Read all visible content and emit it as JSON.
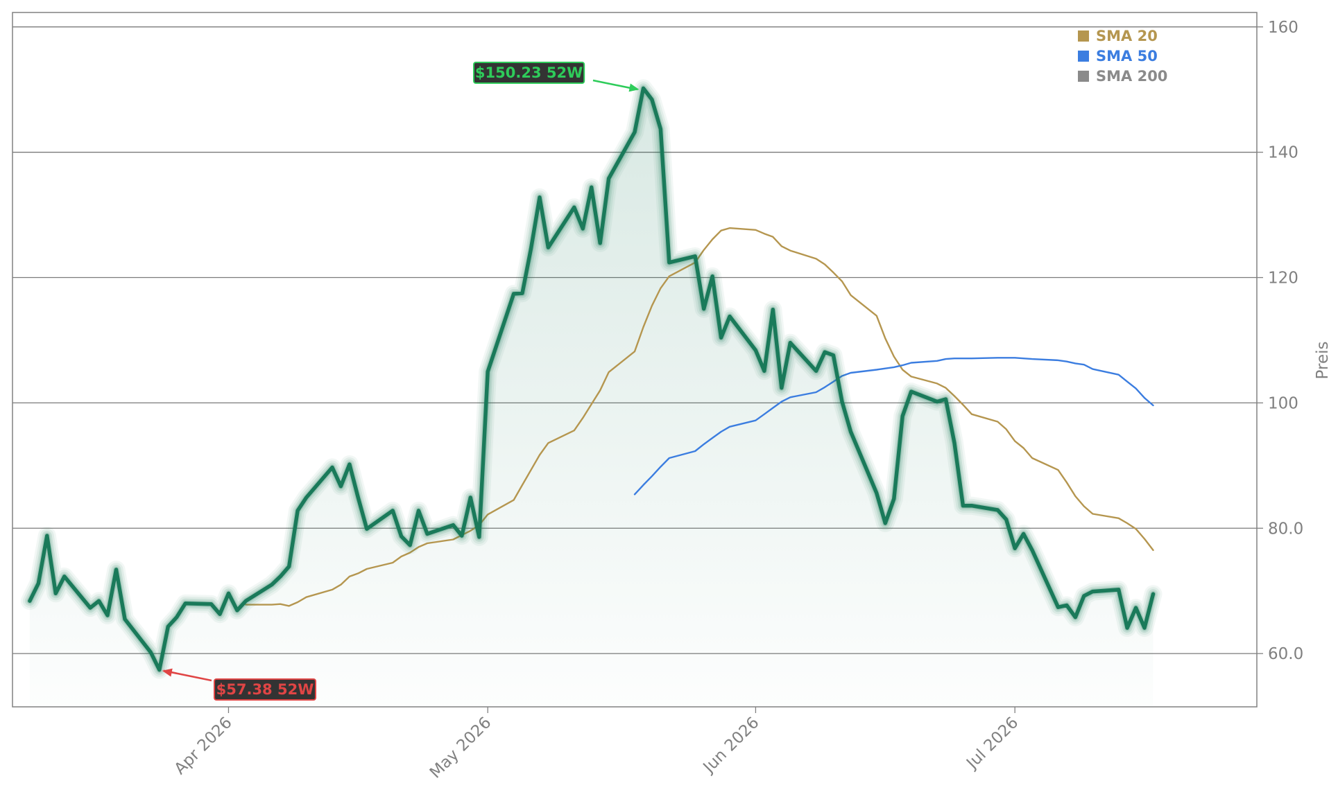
{
  "chart_data": {
    "type": "line",
    "title": "",
    "xlabel": "",
    "ylabel": "Preis",
    "ylim": [
      51.5,
      162.3
    ],
    "xlim": [
      "2026-03-07",
      "2026-07-29"
    ],
    "y_axis_side": "right",
    "grid": "horizontal",
    "yticks": [
      {
        "value": 60,
        "label": "60.0"
      },
      {
        "value": 80,
        "label": "80.0"
      },
      {
        "value": 100,
        "label": "100"
      },
      {
        "value": 120,
        "label": "120"
      },
      {
        "value": 140,
        "label": "140"
      },
      {
        "value": 160,
        "label": "160"
      }
    ],
    "xticks": [
      {
        "value": "2026-04-01",
        "label": "Apr 2026"
      },
      {
        "value": "2026-05-01",
        "label": "May 2026"
      },
      {
        "value": "2026-06-01",
        "label": "Jun 2026"
      },
      {
        "value": "2026-07-01",
        "label": "Jul 2026"
      }
    ],
    "legend": {
      "placement": "top-right",
      "entries": [
        {
          "name": "SMA 20",
          "color": "#b5964f"
        },
        {
          "name": "SMA 50",
          "color": "#3b7de0"
        },
        {
          "name": "SMA 200",
          "color": "#8a8a8a"
        }
      ]
    },
    "price_color": "#1a7a5a",
    "series": [
      {
        "name": "",
        "role": "price",
        "points": [
          [
            "2026-03-09",
            68.4
          ],
          [
            "2026-03-10",
            71.2
          ],
          [
            "2026-03-11",
            78.8
          ],
          [
            "2026-03-12",
            69.6
          ],
          [
            "2026-03-13",
            72.3
          ],
          [
            "2026-03-16",
            67.3
          ],
          [
            "2026-03-17",
            68.4
          ],
          [
            "2026-03-18",
            66.1
          ],
          [
            "2026-03-19",
            73.4
          ],
          [
            "2026-03-20",
            65.5
          ],
          [
            "2026-03-23",
            60.2
          ],
          [
            "2026-03-24",
            57.4
          ],
          [
            "2026-03-25",
            64.3
          ],
          [
            "2026-03-26",
            65.8
          ],
          [
            "2026-03-27",
            68.0
          ],
          [
            "2026-03-30",
            67.9
          ],
          [
            "2026-03-31",
            66.3
          ],
          [
            "2026-04-01",
            69.6
          ],
          [
            "2026-04-02",
            66.9
          ],
          [
            "2026-04-03",
            68.4
          ],
          [
            "2026-04-06",
            71.0
          ],
          [
            "2026-04-07",
            72.3
          ],
          [
            "2026-04-08",
            73.9
          ],
          [
            "2026-04-09",
            82.8
          ],
          [
            "2026-04-10",
            84.9
          ],
          [
            "2026-04-13",
            89.7
          ],
          [
            "2026-04-14",
            86.7
          ],
          [
            "2026-04-15",
            90.2
          ],
          [
            "2026-04-16",
            84.9
          ],
          [
            "2026-04-17",
            79.9
          ],
          [
            "2026-04-20",
            82.8
          ],
          [
            "2026-04-21",
            78.7
          ],
          [
            "2026-04-22",
            77.3
          ],
          [
            "2026-04-23",
            82.8
          ],
          [
            "2026-04-24",
            79.1
          ],
          [
            "2026-04-27",
            80.5
          ],
          [
            "2026-04-28",
            78.8
          ],
          [
            "2026-04-29",
            84.9
          ],
          [
            "2026-04-30",
            78.6
          ],
          [
            "2026-05-01",
            105.0
          ],
          [
            "2026-05-04",
            117.4
          ],
          [
            "2026-05-05",
            117.5
          ],
          [
            "2026-05-06",
            124.6
          ],
          [
            "2026-05-07",
            132.8
          ],
          [
            "2026-05-08",
            124.8
          ],
          [
            "2026-05-11",
            131.2
          ],
          [
            "2026-05-12",
            127.8
          ],
          [
            "2026-05-13",
            134.4
          ],
          [
            "2026-05-14",
            125.5
          ],
          [
            "2026-05-15",
            135.8
          ],
          [
            "2026-05-18",
            143.2
          ],
          [
            "2026-05-19",
            150.2
          ],
          [
            "2026-05-20",
            148.4
          ],
          [
            "2026-05-21",
            143.7
          ],
          [
            "2026-05-22",
            122.4
          ],
          [
            "2026-05-25",
            123.4
          ],
          [
            "2026-05-26",
            115.0
          ],
          [
            "2026-05-27",
            120.2
          ],
          [
            "2026-05-28",
            110.4
          ],
          [
            "2026-05-29",
            113.8
          ],
          [
            "2026-06-01",
            108.4
          ],
          [
            "2026-06-02",
            105.1
          ],
          [
            "2026-06-03",
            114.9
          ],
          [
            "2026-06-04",
            102.4
          ],
          [
            "2026-06-05",
            109.6
          ],
          [
            "2026-06-08",
            105.1
          ],
          [
            "2026-06-09",
            108.1
          ],
          [
            "2026-06-10",
            107.6
          ],
          [
            "2026-06-11",
            100.2
          ],
          [
            "2026-06-12",
            95.4
          ],
          [
            "2026-06-15",
            85.6
          ],
          [
            "2026-06-16",
            80.8
          ],
          [
            "2026-06-17",
            84.7
          ],
          [
            "2026-06-18",
            97.9
          ],
          [
            "2026-06-19",
            101.8
          ],
          [
            "2026-06-22",
            100.2
          ],
          [
            "2026-06-23",
            100.6
          ],
          [
            "2026-06-24",
            93.6
          ],
          [
            "2026-06-25",
            83.6
          ],
          [
            "2026-06-26",
            83.6
          ],
          [
            "2026-06-29",
            82.9
          ],
          [
            "2026-06-30",
            81.4
          ],
          [
            "2026-07-01",
            76.8
          ],
          [
            "2026-07-02",
            79.1
          ],
          [
            "2026-07-03",
            76.5
          ],
          [
            "2026-07-06",
            67.4
          ],
          [
            "2026-07-07",
            67.7
          ],
          [
            "2026-07-08",
            65.8
          ],
          [
            "2026-07-09",
            69.2
          ],
          [
            "2026-07-10",
            69.9
          ],
          [
            "2026-07-13",
            70.2
          ],
          [
            "2026-07-14",
            64.1
          ],
          [
            "2026-07-15",
            67.3
          ],
          [
            "2026-07-16",
            64.1
          ],
          [
            "2026-07-17",
            69.5
          ]
        ]
      },
      {
        "name": "SMA 20",
        "role": "sma20",
        "points": [
          [
            "2026-04-03",
            67.8
          ],
          [
            "2026-04-06",
            67.8
          ],
          [
            "2026-04-07",
            67.9
          ],
          [
            "2026-04-08",
            67.6
          ],
          [
            "2026-04-09",
            68.2
          ],
          [
            "2026-04-10",
            69.0
          ],
          [
            "2026-04-13",
            70.2
          ],
          [
            "2026-04-14",
            71.0
          ],
          [
            "2026-04-15",
            72.3
          ],
          [
            "2026-04-16",
            72.8
          ],
          [
            "2026-04-17",
            73.5
          ],
          [
            "2026-04-20",
            74.5
          ],
          [
            "2026-04-21",
            75.5
          ],
          [
            "2026-04-22",
            76.1
          ],
          [
            "2026-04-23",
            77.0
          ],
          [
            "2026-04-24",
            77.6
          ],
          [
            "2026-04-27",
            78.2
          ],
          [
            "2026-04-28",
            78.9
          ],
          [
            "2026-04-29",
            79.6
          ],
          [
            "2026-04-30",
            80.5
          ],
          [
            "2026-05-01",
            82.2
          ],
          [
            "2026-05-04",
            84.5
          ],
          [
            "2026-05-05",
            86.9
          ],
          [
            "2026-05-06",
            89.3
          ],
          [
            "2026-05-07",
            91.7
          ],
          [
            "2026-05-08",
            93.6
          ],
          [
            "2026-05-11",
            95.6
          ],
          [
            "2026-05-12",
            97.6
          ],
          [
            "2026-05-13",
            99.8
          ],
          [
            "2026-05-14",
            102.0
          ],
          [
            "2026-05-15",
            104.9
          ],
          [
            "2026-05-18",
            108.2
          ],
          [
            "2026-05-19",
            112.1
          ],
          [
            "2026-05-20",
            115.5
          ],
          [
            "2026-05-21",
            118.3
          ],
          [
            "2026-05-22",
            120.2
          ],
          [
            "2026-05-25",
            122.4
          ],
          [
            "2026-05-26",
            124.4
          ],
          [
            "2026-05-27",
            126.1
          ],
          [
            "2026-05-28",
            127.5
          ],
          [
            "2026-05-29",
            127.9
          ],
          [
            "2026-06-01",
            127.6
          ],
          [
            "2026-06-02",
            127.0
          ],
          [
            "2026-06-03",
            126.5
          ],
          [
            "2026-06-04",
            125.0
          ],
          [
            "2026-06-05",
            124.3
          ],
          [
            "2026-06-08",
            123.0
          ],
          [
            "2026-06-09",
            122.1
          ],
          [
            "2026-06-10",
            120.8
          ],
          [
            "2026-06-11",
            119.4
          ],
          [
            "2026-06-12",
            117.2
          ],
          [
            "2026-06-15",
            113.9
          ],
          [
            "2026-06-16",
            110.3
          ],
          [
            "2026-06-17",
            107.4
          ],
          [
            "2026-06-18",
            105.3
          ],
          [
            "2026-06-19",
            104.2
          ],
          [
            "2026-06-22",
            103.1
          ],
          [
            "2026-06-23",
            102.4
          ],
          [
            "2026-06-24",
            101.1
          ],
          [
            "2026-06-25",
            99.7
          ],
          [
            "2026-06-26",
            98.2
          ],
          [
            "2026-06-29",
            97.0
          ],
          [
            "2026-06-30",
            95.8
          ],
          [
            "2026-07-01",
            93.9
          ],
          [
            "2026-07-02",
            92.8
          ],
          [
            "2026-07-03",
            91.2
          ],
          [
            "2026-07-06",
            89.3
          ],
          [
            "2026-07-07",
            87.3
          ],
          [
            "2026-07-08",
            85.1
          ],
          [
            "2026-07-09",
            83.5
          ],
          [
            "2026-07-10",
            82.3
          ],
          [
            "2026-07-13",
            81.6
          ],
          [
            "2026-07-14",
            80.8
          ],
          [
            "2026-07-15",
            79.9
          ],
          [
            "2026-07-16",
            78.3
          ],
          [
            "2026-07-17",
            76.5
          ]
        ]
      },
      {
        "name": "SMA 50",
        "role": "sma50",
        "points": [
          [
            "2026-05-18",
            85.4
          ],
          [
            "2026-05-19",
            86.9
          ],
          [
            "2026-05-20",
            88.3
          ],
          [
            "2026-05-21",
            89.8
          ],
          [
            "2026-05-22",
            91.2
          ],
          [
            "2026-05-25",
            92.3
          ],
          [
            "2026-05-26",
            93.4
          ],
          [
            "2026-05-27",
            94.4
          ],
          [
            "2026-05-28",
            95.4
          ],
          [
            "2026-05-29",
            96.2
          ],
          [
            "2026-06-01",
            97.2
          ],
          [
            "2026-06-02",
            98.2
          ],
          [
            "2026-06-03",
            99.2
          ],
          [
            "2026-06-04",
            100.2
          ],
          [
            "2026-06-05",
            100.9
          ],
          [
            "2026-06-08",
            101.7
          ],
          [
            "2026-06-09",
            102.5
          ],
          [
            "2026-06-10",
            103.4
          ],
          [
            "2026-06-11",
            104.3
          ],
          [
            "2026-06-12",
            104.8
          ],
          [
            "2026-06-15",
            105.3
          ],
          [
            "2026-06-16",
            105.5
          ],
          [
            "2026-06-17",
            105.7
          ],
          [
            "2026-06-18",
            106.0
          ],
          [
            "2026-06-19",
            106.4
          ],
          [
            "2026-06-22",
            106.7
          ],
          [
            "2026-06-23",
            107.0
          ],
          [
            "2026-06-24",
            107.1
          ],
          [
            "2026-06-25",
            107.1
          ],
          [
            "2026-06-26",
            107.1
          ],
          [
            "2026-06-29",
            107.2
          ],
          [
            "2026-06-30",
            107.2
          ],
          [
            "2026-07-01",
            107.2
          ],
          [
            "2026-07-02",
            107.1
          ],
          [
            "2026-07-03",
            107.0
          ],
          [
            "2026-07-06",
            106.8
          ],
          [
            "2026-07-07",
            106.6
          ],
          [
            "2026-07-08",
            106.3
          ],
          [
            "2026-07-09",
            106.1
          ],
          [
            "2026-07-10",
            105.4
          ],
          [
            "2026-07-13",
            104.5
          ],
          [
            "2026-07-14",
            103.4
          ],
          [
            "2026-07-15",
            102.3
          ],
          [
            "2026-07-16",
            100.8
          ],
          [
            "2026-07-17",
            99.6
          ]
        ]
      }
    ],
    "annotations": [
      {
        "kind": "high",
        "text": "$150.23 52W",
        "date": "2026-05-19",
        "value": 150.23,
        "color": "#2ecc5a",
        "box_color": "#333333"
      },
      {
        "kind": "low",
        "text": "$57.38 52W",
        "date": "2026-03-24",
        "value": 57.38,
        "color": "#e04545",
        "box_color": "#333333"
      }
    ]
  }
}
